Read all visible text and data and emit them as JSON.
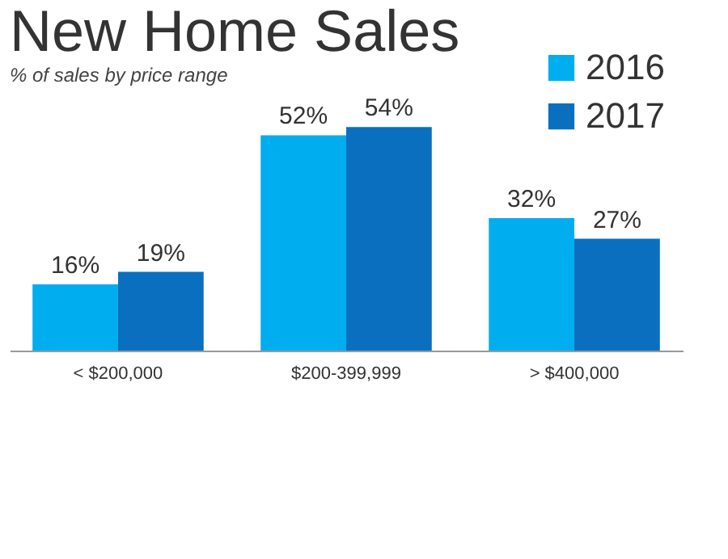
{
  "chart_data": {
    "type": "bar",
    "title": "New Home Sales",
    "subtitle": "% of sales by price range",
    "categories": [
      "< $200,000",
      "$200-399,999",
      "> $400,000"
    ],
    "series": [
      {
        "name": "2016",
        "color": "#00aeef",
        "values": [
          16,
          52,
          32
        ],
        "value_labels": [
          "16%",
          "52%",
          "32%"
        ]
      },
      {
        "name": "2017",
        "color": "#0b6fc0",
        "values": [
          19,
          54,
          27
        ],
        "value_labels": [
          "19%",
          "54%",
          "27%"
        ]
      }
    ],
    "legend": "top right"
  }
}
